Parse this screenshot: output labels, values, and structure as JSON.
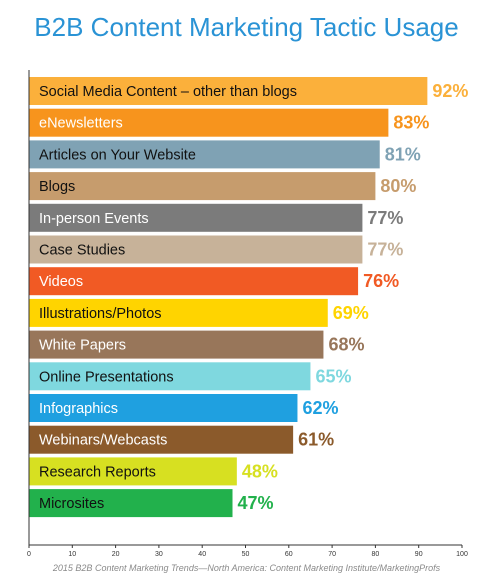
{
  "chart_data": {
    "type": "bar",
    "orientation": "horizontal",
    "title": "B2B Content Marketing Tactic Usage",
    "categories": [
      "Social Media Content – other than blogs",
      "eNewsletters",
      "Articles on Your Website",
      "Blogs",
      "In-person Events",
      "Case Studies",
      "Videos",
      "Illustrations/Photos",
      "White Papers",
      "Online Presentations",
      "Infographics",
      "Webinars/Webcasts",
      "Research Reports",
      "Microsites"
    ],
    "values": [
      92,
      83,
      81,
      80,
      77,
      77,
      76,
      69,
      68,
      65,
      62,
      61,
      48,
      47
    ],
    "value_labels": [
      "92%",
      "83%",
      "81%",
      "80%",
      "77%",
      "77%",
      "76%",
      "69%",
      "68%",
      "65%",
      "62%",
      "61%",
      "48%",
      "47%"
    ],
    "colors": [
      "#fbb03b",
      "#f7941d",
      "#7fa2b4",
      "#c69c6d",
      "#7b7b7b",
      "#c7b299",
      "#f15a24",
      "#ffd400",
      "#98765a",
      "#7fd8df",
      "#1fa0e0",
      "#8b5a2b",
      "#d7e021",
      "#22b14c"
    ],
    "label_colors": [
      "#111111",
      "#ffffff",
      "#111111",
      "#111111",
      "#ffffff",
      "#111111",
      "#ffffff",
      "#111111",
      "#ffffff",
      "#111111",
      "#ffffff",
      "#ffffff",
      "#111111",
      "#111111"
    ],
    "xlim": [
      0,
      100
    ],
    "xticks": [
      0,
      10,
      20,
      30,
      40,
      50,
      60,
      70,
      80,
      90,
      100
    ],
    "grid": false,
    "legend": "none"
  },
  "source": "2015 B2B Content Marketing Trends—North America: Content Marketing Institute/MarketingProfs"
}
